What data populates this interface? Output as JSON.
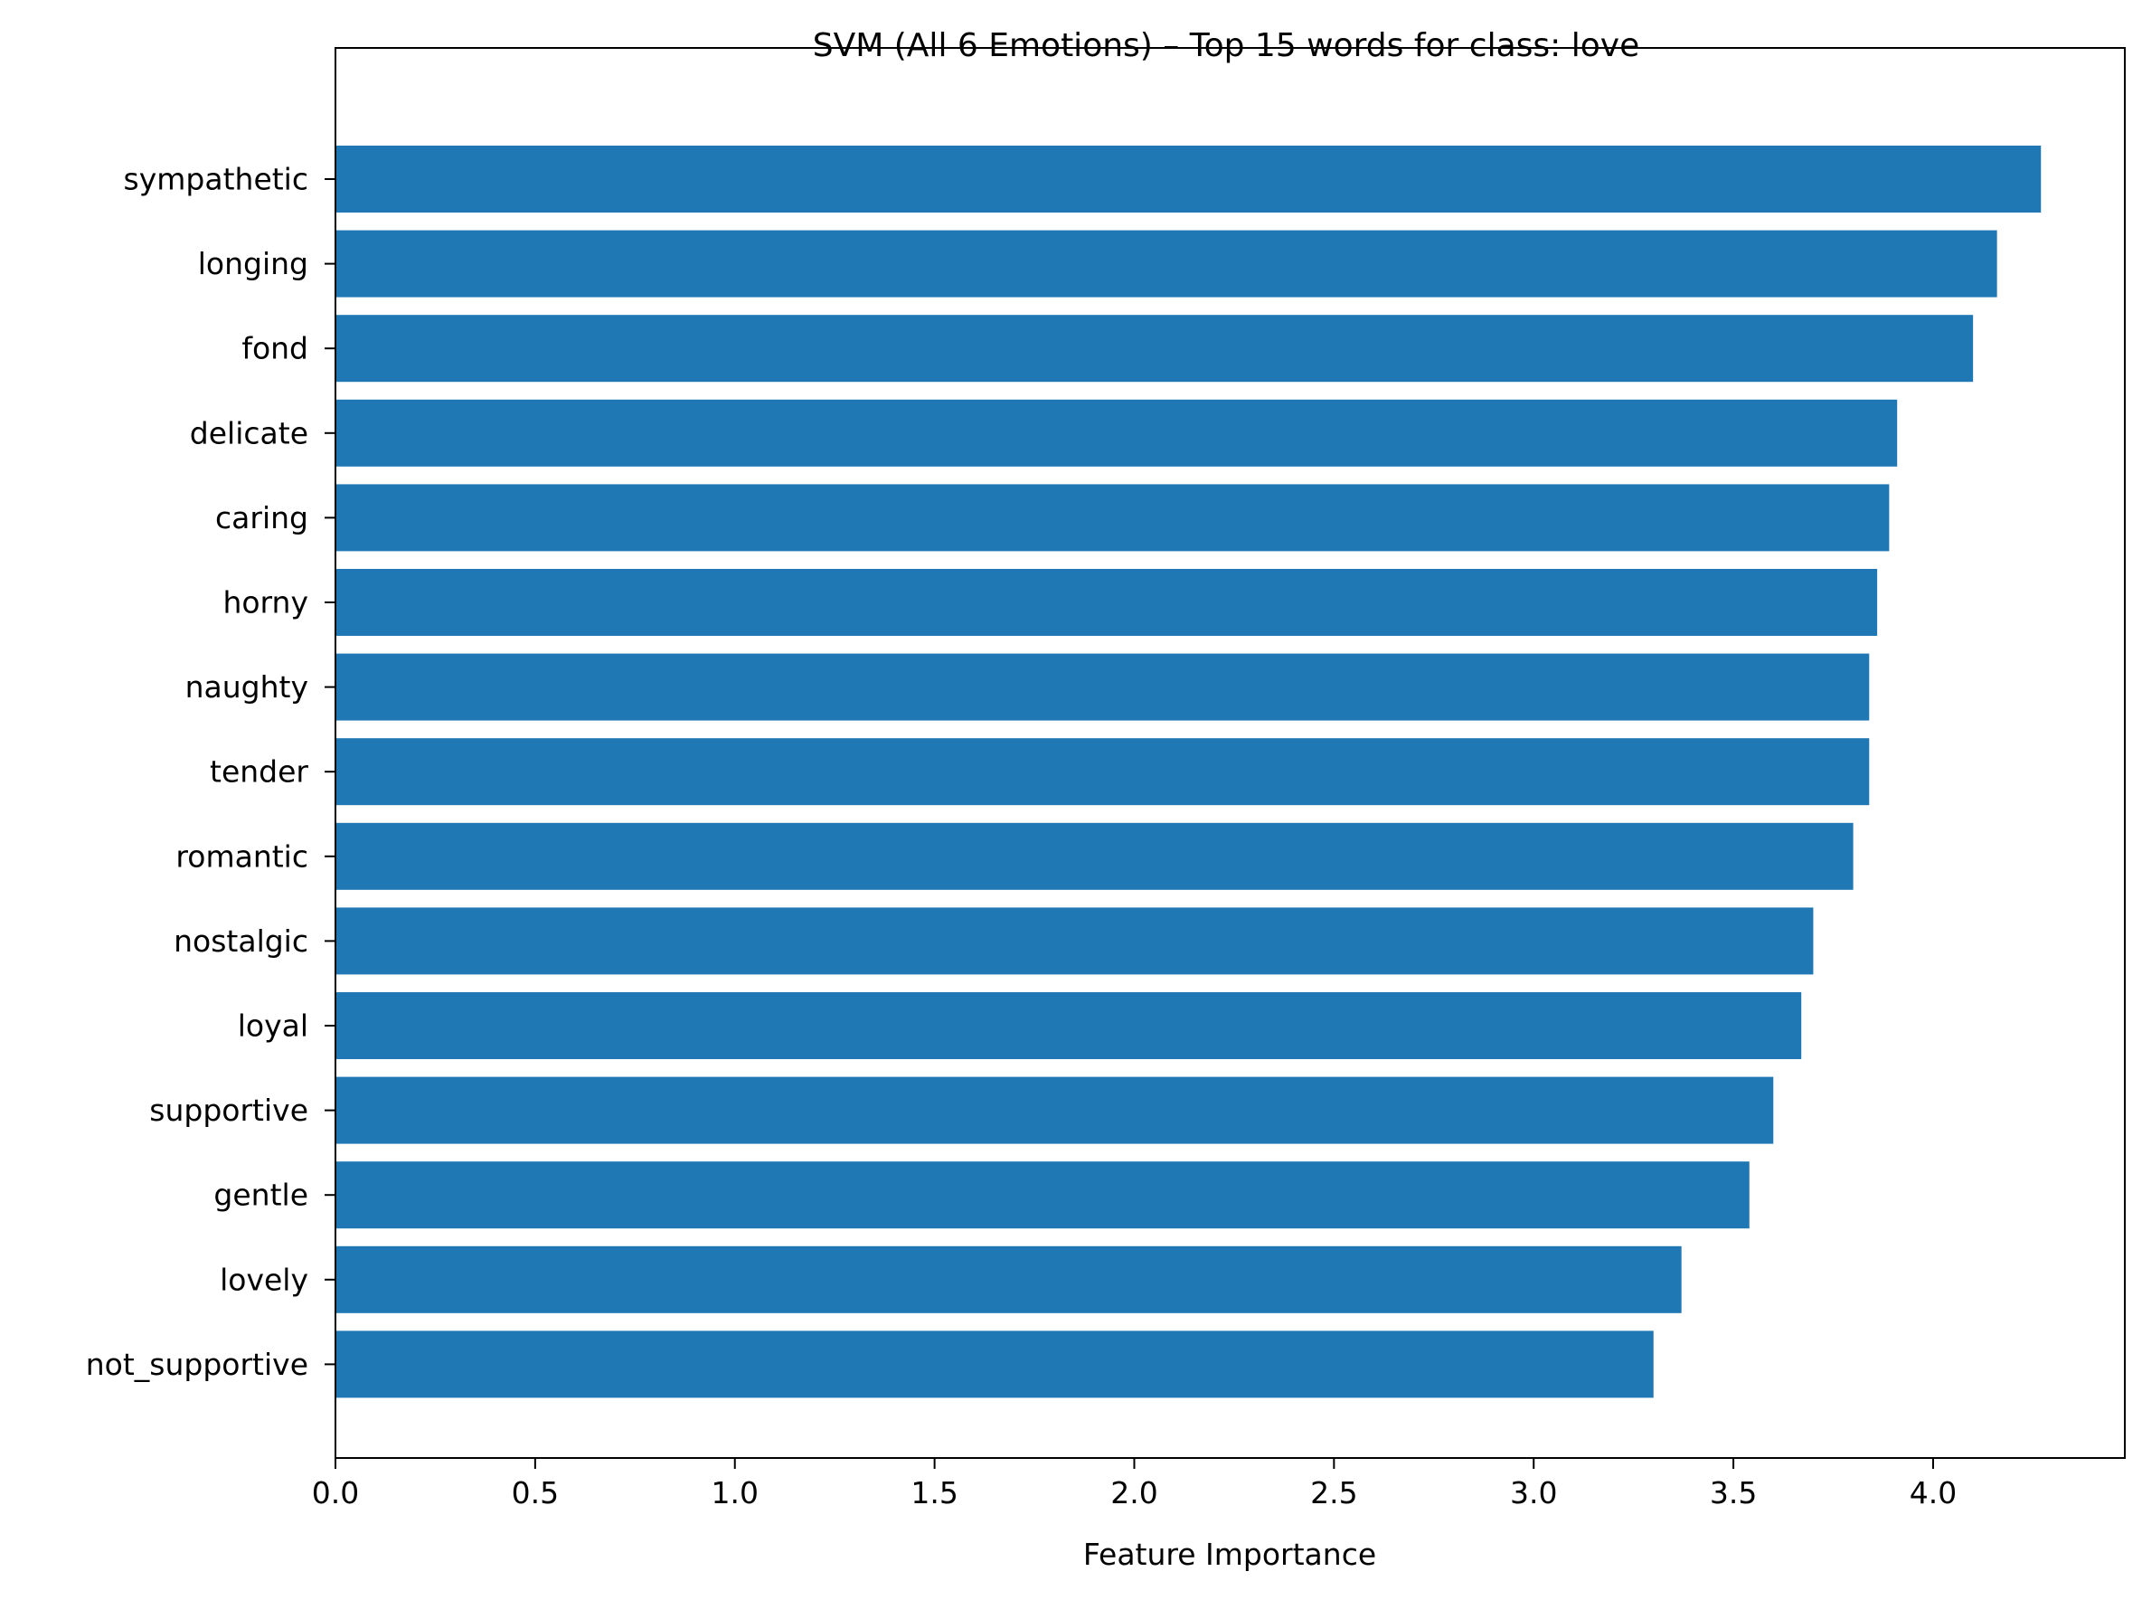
{
  "chart_data": {
    "type": "bar",
    "orientation": "horizontal",
    "title": "SVM (All 6 Emotions) – Top 15 words for class: love",
    "xlabel": "Feature Importance",
    "ylabel": "",
    "categories": [
      "sympathetic",
      "longing",
      "fond",
      "delicate",
      "caring",
      "horny",
      "naughty",
      "tender",
      "romantic",
      "nostalgic",
      "loyal",
      "supportive",
      "gentle",
      "lovely",
      "not_supportive"
    ],
    "values": [
      4.27,
      4.16,
      4.1,
      3.91,
      3.89,
      3.86,
      3.84,
      3.84,
      3.8,
      3.7,
      3.67,
      3.6,
      3.54,
      3.37,
      3.3
    ],
    "xlim": [
      0,
      4.48
    ],
    "xticks": [
      "0.0",
      "0.5",
      "1.0",
      "1.5",
      "2.0",
      "2.5",
      "3.0",
      "3.5",
      "4.0"
    ],
    "grid": false,
    "bar_color": "#1f77b4"
  }
}
